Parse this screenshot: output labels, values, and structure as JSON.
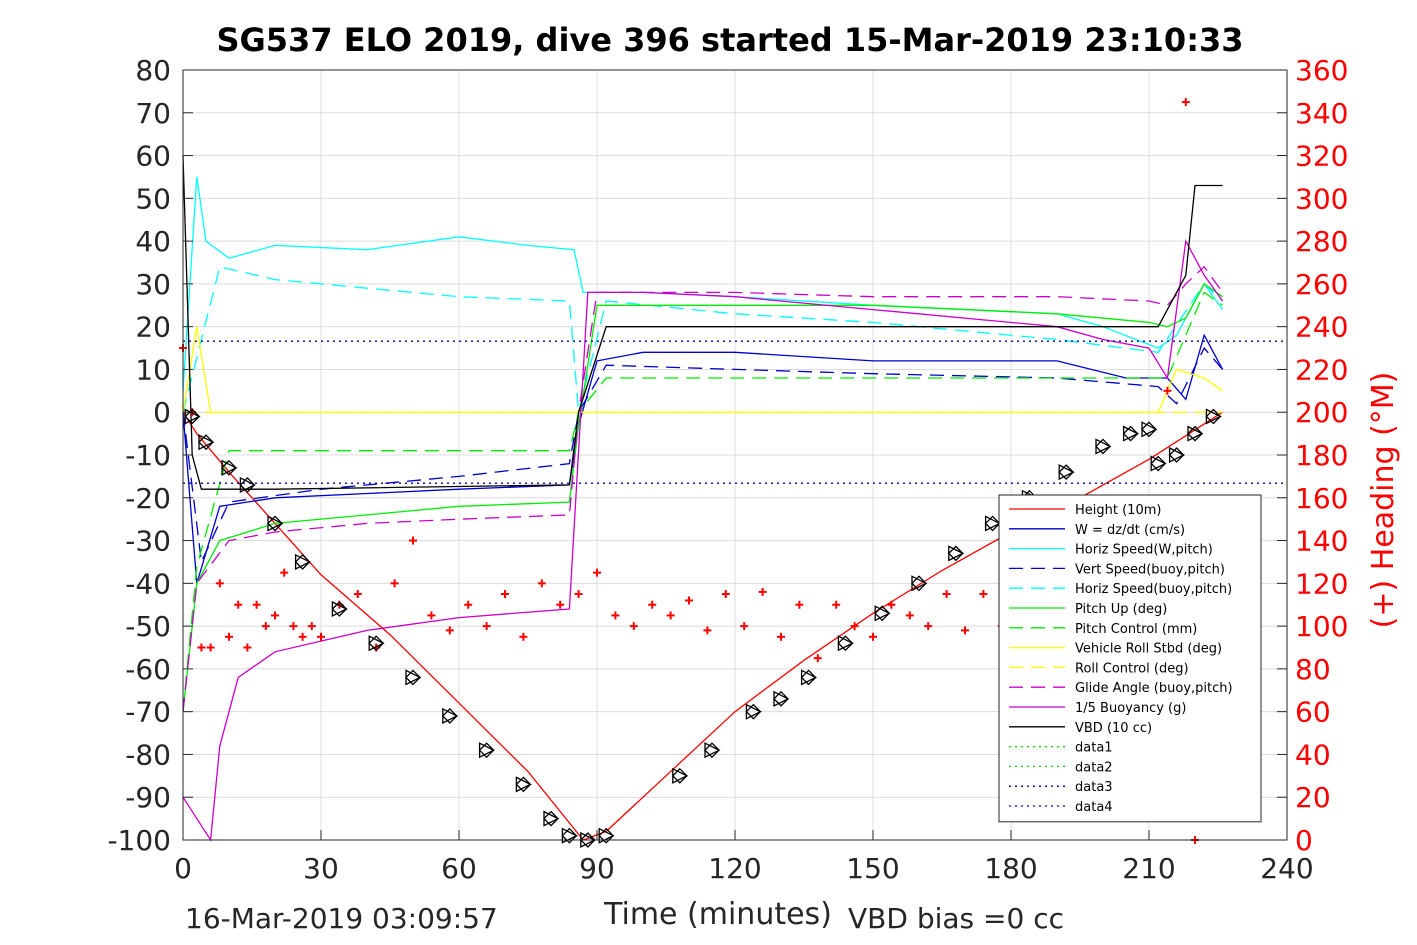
{
  "chart_data": {
    "type": "line",
    "title": "SG537 ELO 2019, dive 396 started 15-Mar-2019 23:10:33",
    "xlabel": "Time (minutes)",
    "ylabel_right": "(+) Heading (°M)",
    "xlim": [
      0,
      240
    ],
    "ylim_left": [
      -100,
      80
    ],
    "ylim_right": [
      0,
      360
    ],
    "x_ticks": [
      "0",
      "30",
      "60",
      "90",
      "120",
      "150",
      "180",
      "210",
      "240"
    ],
    "y_ticks_left": [
      "80",
      "70",
      "60",
      "50",
      "40",
      "30",
      "20",
      "10",
      "0",
      "-10",
      "-20",
      "-30",
      "-40",
      "-50",
      "-60",
      "-70",
      "-80",
      "-90",
      "-100"
    ],
    "y_ticks_right": [
      "360",
      "340",
      "320",
      "300",
      "280",
      "260",
      "240",
      "220",
      "200",
      "180",
      "160",
      "140",
      "120",
      "100",
      "80",
      "60",
      "40",
      "20",
      "0"
    ],
    "grid": true,
    "legend_position": "lower-right",
    "footer_left": "16-Mar-2019 03:09:57",
    "footer_right": "VBD bias =0 cc",
    "series": [
      {
        "name": "Height (10m)",
        "color": "#ff0000",
        "style": "solid",
        "x": [
          0,
          3,
          10,
          20,
          30,
          45,
          60,
          75,
          87,
          92,
          105,
          120,
          135,
          150,
          165,
          180,
          195,
          210,
          226
        ],
        "y": [
          0,
          -5,
          -14,
          -26,
          -38,
          -52,
          -68,
          -84,
          -100,
          -98,
          -85,
          -70,
          -58,
          -47,
          -37,
          -28,
          -20,
          -11,
          0
        ]
      },
      {
        "name": "W = dz/dt (cm/s)",
        "color": "#0000cc",
        "style": "solid",
        "x": [
          0,
          3,
          8,
          20,
          40,
          60,
          84,
          86,
          90,
          100,
          120,
          150,
          190,
          205,
          214,
          218,
          222,
          226
        ],
        "y": [
          0,
          -40,
          -22,
          -20,
          -19,
          -18,
          -17,
          -3,
          12,
          14,
          14,
          12,
          12,
          8,
          8,
          3,
          18,
          10
        ]
      },
      {
        "name": "Horiz Speed(W,pitch)",
        "color": "#00ffff",
        "style": "solid",
        "x": [
          0,
          3,
          5,
          10,
          20,
          40,
          60,
          75,
          85,
          87,
          100,
          120,
          150,
          190,
          200,
          212,
          216,
          222,
          226
        ],
        "y": [
          5,
          55,
          40,
          36,
          39,
          38,
          41,
          39,
          38,
          28,
          28,
          27,
          25,
          23,
          20,
          15,
          18,
          30,
          24
        ]
      },
      {
        "name": "Vert Speed(buoy,pitch)",
        "color": "#0000cc",
        "style": "dashed",
        "x": [
          0,
          4,
          10,
          30,
          60,
          84,
          86,
          92,
          120,
          150,
          190,
          212,
          216,
          222,
          226
        ],
        "y": [
          0,
          -35,
          -21,
          -18,
          -15,
          -12,
          0,
          11,
          10,
          9,
          8,
          6,
          2,
          15,
          10
        ]
      },
      {
        "name": "Horiz Speed(buoy,pitch)",
        "color": "#00ffff",
        "style": "dashed",
        "x": [
          0,
          8,
          20,
          40,
          60,
          84,
          86,
          92,
          120,
          150,
          190,
          212,
          222,
          226
        ],
        "y": [
          0,
          34,
          31,
          29,
          27,
          26,
          0,
          26,
          23,
          21,
          17,
          14,
          30,
          26
        ]
      },
      {
        "name": "Pitch Up (deg)",
        "color": "#00ee00",
        "style": "solid",
        "x": [
          0,
          3,
          8,
          20,
          40,
          60,
          84,
          86,
          90,
          120,
          150,
          190,
          210,
          214,
          218,
          222,
          226
        ],
        "y": [
          -70,
          -40,
          -30,
          -26,
          -24,
          -22,
          -21,
          -3,
          25,
          25,
          25,
          23,
          21,
          20,
          22,
          30,
          27
        ]
      },
      {
        "name": "Pitch Control (mm)",
        "color": "#00ee00",
        "style": "dashed",
        "x": [
          0,
          3,
          10,
          40,
          84,
          86,
          92,
          150,
          210,
          214,
          218,
          222,
          226
        ],
        "y": [
          -70,
          -36,
          -9,
          -9,
          -9,
          0,
          8,
          8,
          8,
          8,
          18,
          28,
          25
        ]
      },
      {
        "name": "Vehicle Roll Stbd (deg)",
        "color": "#ffff00",
        "style": "solid",
        "x": [
          0,
          3,
          6,
          20,
          40,
          60,
          84,
          88,
          100,
          120,
          150,
          190,
          212,
          216,
          222,
          226
        ],
        "y": [
          0,
          20,
          0,
          0,
          0,
          0,
          0,
          0,
          0,
          0,
          0,
          0,
          0,
          10,
          8,
          5
        ]
      },
      {
        "name": "Roll Control (deg)",
        "color": "#ffff00",
        "style": "dashed",
        "x": [
          0,
          20,
          60,
          84,
          88,
          120,
          150,
          190,
          226
        ],
        "y": [
          0,
          0,
          0,
          0,
          0,
          0,
          0,
          0,
          0
        ]
      },
      {
        "name": "Glide Angle (buoy,pitch)",
        "color": "#cc00cc",
        "style": "dashed",
        "x": [
          0,
          3,
          10,
          20,
          40,
          60,
          84,
          86,
          90,
          120,
          150,
          190,
          210,
          214,
          218,
          222,
          226
        ],
        "y": [
          -70,
          -40,
          -30,
          -28,
          -26,
          -25,
          -24,
          0,
          28,
          28,
          27,
          27,
          26,
          25,
          30,
          34,
          28
        ]
      },
      {
        "name": "1/5 Buoyancy (g)",
        "color": "#cc00cc",
        "style": "solid",
        "x": [
          0,
          6,
          8,
          12,
          20,
          40,
          60,
          84,
          88,
          100,
          120,
          150,
          190,
          200,
          210,
          214,
          218,
          222,
          226
        ],
        "y": [
          -90,
          -100,
          -78,
          -62,
          -56,
          -51,
          -48,
          -46,
          28,
          28,
          27,
          24,
          20,
          17,
          15,
          8,
          40,
          32,
          26
        ]
      },
      {
        "name": "VBD (10 cc)",
        "color": "#000000",
        "style": "solid",
        "x": [
          0,
          2,
          4,
          20,
          84,
          86,
          92,
          190,
          212,
          218,
          220,
          226
        ],
        "y": [
          60,
          -10,
          -18,
          -18,
          -17,
          0,
          20,
          20,
          20,
          32,
          53,
          53
        ]
      },
      {
        "name": "data1",
        "color": "#00cc00",
        "style": "dotted",
        "x": [],
        "y": []
      },
      {
        "name": "data2",
        "color": "#00cc00",
        "style": "dotted",
        "x": [],
        "y": []
      },
      {
        "name": "data3",
        "color": "#000099",
        "style": "dotted",
        "x": [
          0,
          240
        ],
        "y": [
          16.6,
          16.6
        ]
      },
      {
        "name": "data4",
        "color": "#000099",
        "style": "dotted",
        "x": [
          0,
          240
        ],
        "y": [
          -16.6,
          -16.6
        ]
      }
    ],
    "heading": {
      "name": "Heading",
      "axis": "right",
      "color": "#ff0000",
      "marker": "+",
      "x": [
        0,
        2,
        4,
        6,
        8,
        10,
        12,
        14,
        16,
        18,
        20,
        22,
        24,
        26,
        28,
        30,
        34,
        38,
        42,
        46,
        50,
        54,
        58,
        62,
        66,
        70,
        74,
        78,
        82,
        86,
        90,
        94,
        98,
        102,
        106,
        110,
        114,
        118,
        122,
        126,
        130,
        134,
        138,
        142,
        146,
        150,
        154,
        158,
        162,
        166,
        170,
        174,
        178,
        182,
        186,
        190,
        194,
        198,
        202,
        206,
        210,
        214,
        216,
        218,
        220
      ],
      "y": [
        230,
        200,
        90,
        90,
        120,
        95,
        110,
        90,
        110,
        100,
        105,
        125,
        100,
        95,
        100,
        95,
        110,
        115,
        90,
        120,
        140,
        105,
        98,
        110,
        100,
        115,
        95,
        120,
        110,
        115,
        125,
        105,
        100,
        110,
        105,
        112,
        98,
        115,
        100,
        116,
        95,
        110,
        85,
        110,
        100,
        95,
        110,
        105,
        100,
        115,
        98,
        115,
        100,
        112,
        100,
        110,
        100,
        105,
        100,
        110,
        130,
        210,
        140,
        345,
        0
      ]
    },
    "depth_markers": {
      "x": [
        2,
        5,
        10,
        14,
        20,
        26,
        34,
        42,
        50,
        58,
        66,
        74,
        80,
        84,
        88,
        92,
        108,
        115,
        124,
        130,
        136,
        144,
        152,
        160,
        168,
        176,
        184,
        192,
        200,
        206,
        210,
        212,
        216,
        220,
        224
      ],
      "y": [
        -1,
        -7,
        -13,
        -17,
        -26,
        -35,
        -46,
        -54,
        -62,
        -71,
        -79,
        -87,
        -95,
        -99,
        -100,
        -99,
        -85,
        -79,
        -70,
        -67,
        -62,
        -54,
        -47,
        -40,
        -33,
        -26,
        -20,
        -14,
        -8,
        -5,
        -4,
        -12,
        -10,
        -5,
        -1
      ]
    }
  }
}
